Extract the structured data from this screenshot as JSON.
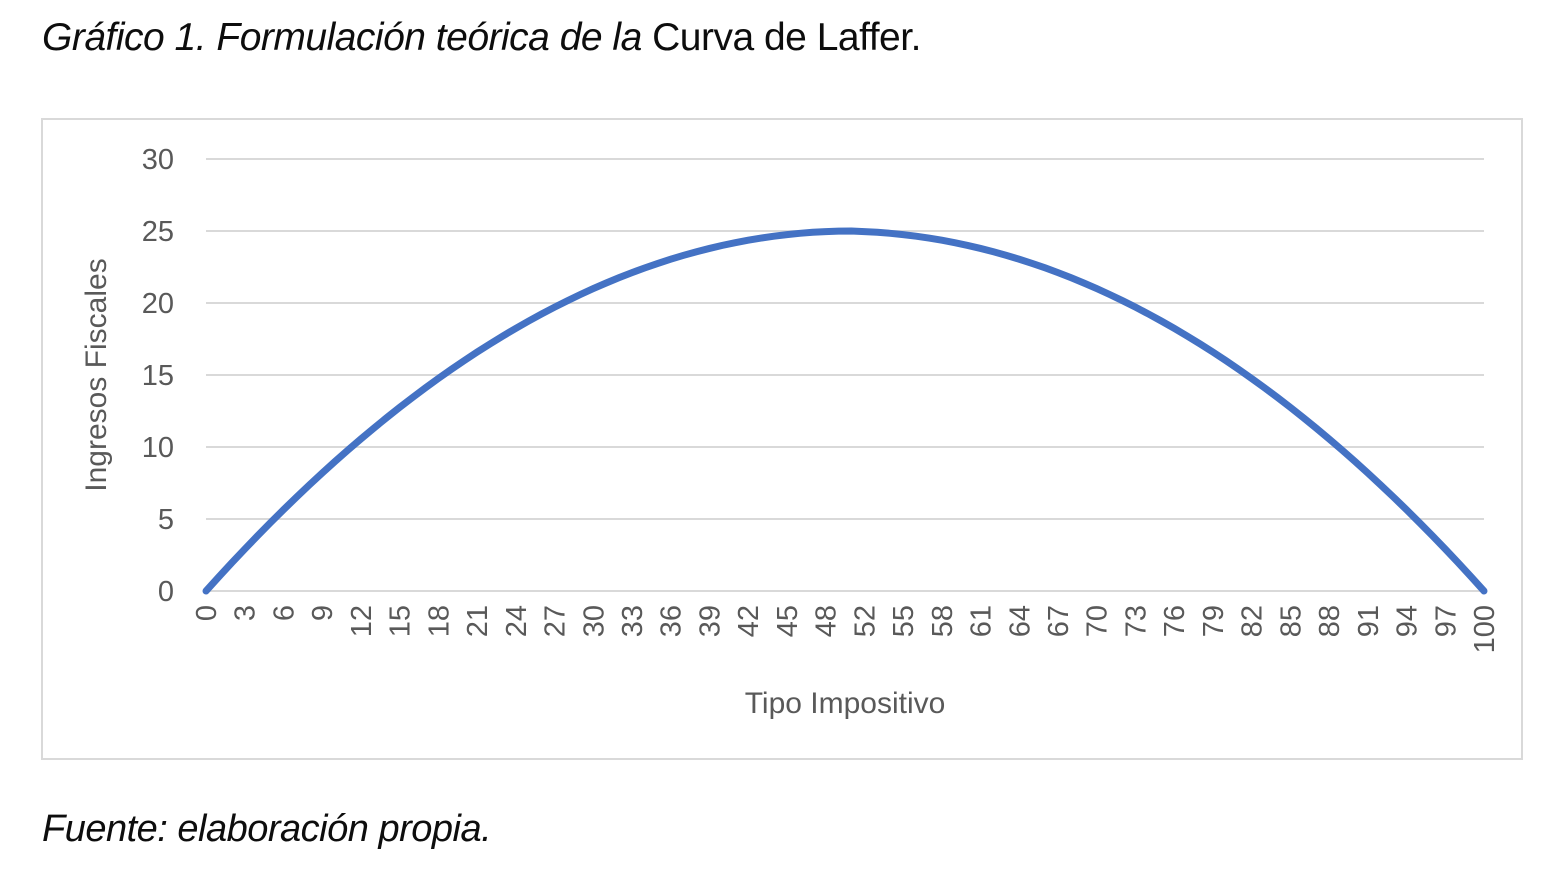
{
  "page": {
    "title_italic": "Gráfico 1. Formulación teórica de la ",
    "title_regular": "Curva de Laffer.",
    "source_note": "Fuente: elaboración propia."
  },
  "colors": {
    "line": "#4472C4",
    "grid": "#D9D9D9",
    "axis_text": "#595959",
    "chart_border": "#D9D9D9"
  },
  "chart_data": {
    "type": "line",
    "title": "Gráfico 1. Formulación teórica de la Curva de Laffer.",
    "xlabel": "Tipo Impositivo",
    "ylabel": "Ingresos Fiscales",
    "ylim": [
      0,
      30
    ],
    "y_ticks": [
      0,
      5,
      10,
      15,
      20,
      25,
      30
    ],
    "x_tick_labels": [
      0,
      3,
      6,
      9,
      12,
      15,
      18,
      21,
      24,
      27,
      30,
      33,
      36,
      39,
      42,
      45,
      48,
      52,
      55,
      58,
      61,
      64,
      67,
      70,
      73,
      76,
      79,
      82,
      85,
      88,
      91,
      94,
      97,
      100
    ],
    "label_interval": 3,
    "grid": "horizontal",
    "legend_position": "none",
    "x": [
      0,
      1,
      2,
      3,
      4,
      5,
      6,
      7,
      8,
      9,
      10,
      11,
      12,
      13,
      14,
      15,
      16,
      17,
      18,
      19,
      20,
      21,
      22,
      23,
      24,
      25,
      26,
      27,
      28,
      29,
      30,
      31,
      32,
      33,
      34,
      35,
      36,
      37,
      38,
      39,
      40,
      41,
      42,
      43,
      44,
      45,
      46,
      47,
      48,
      49,
      50,
      52,
      53,
      54,
      55,
      56,
      57,
      58,
      59,
      60,
      61,
      62,
      63,
      64,
      65,
      66,
      67,
      68,
      69,
      70,
      71,
      72,
      73,
      74,
      75,
      76,
      77,
      78,
      79,
      80,
      81,
      82,
      83,
      84,
      85,
      86,
      87,
      88,
      89,
      90,
      91,
      92,
      93,
      94,
      95,
      96,
      97,
      98,
      99,
      100
    ],
    "series": [
      {
        "name": "Ingresos Fiscales",
        "values": [
          0,
          0.99,
          1.96,
          2.91,
          3.84,
          4.75,
          5.64,
          6.51,
          7.36,
          8.19,
          9,
          9.79,
          10.56,
          11.31,
          12.04,
          12.75,
          13.44,
          14.11,
          14.76,
          15.39,
          16,
          16.59,
          17.16,
          17.71,
          18.24,
          18.75,
          19.24,
          19.71,
          20.16,
          20.59,
          21,
          21.39,
          21.76,
          22.11,
          22.44,
          22.75,
          23.04,
          23.31,
          23.56,
          23.79,
          24,
          24.19,
          24.36,
          24.51,
          24.64,
          24.75,
          24.84,
          24.91,
          24.96,
          24.99,
          25,
          24.96,
          24.91,
          24.84,
          24.75,
          24.64,
          24.51,
          24.36,
          24.19,
          24,
          23.79,
          23.56,
          23.31,
          23.04,
          22.75,
          22.44,
          22.11,
          21.76,
          21.39,
          21,
          20.59,
          20.16,
          19.71,
          19.24,
          18.75,
          18.24,
          17.71,
          17.16,
          16.59,
          16,
          15.39,
          14.76,
          14.11,
          13.44,
          12.75,
          12.04,
          11.31,
          10.56,
          9.79,
          9,
          8.19,
          7.36,
          6.51,
          5.64,
          4.75,
          3.84,
          2.91,
          1.96,
          0.99,
          0
        ]
      }
    ]
  }
}
